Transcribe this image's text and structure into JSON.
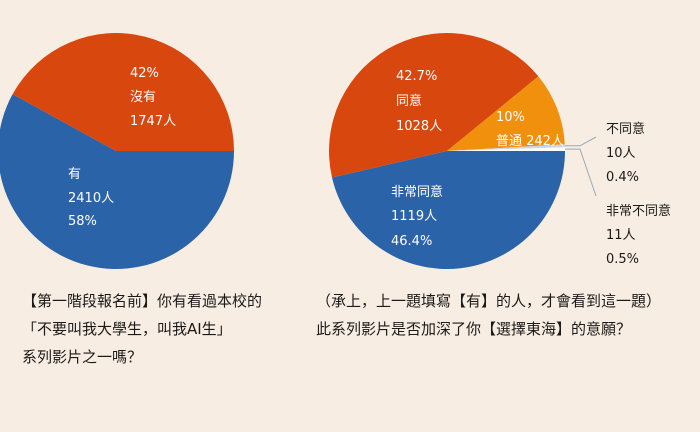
{
  "chart_data": [
    {
      "type": "pie",
      "slices": [
        {
          "label": "有",
          "count": "2410人",
          "percent": "58%",
          "value": 58,
          "color": "#2a63a8"
        },
        {
          "label": "沒有",
          "count": "1747人",
          "percent": "42%",
          "value": 42,
          "color": "#d8470e"
        }
      ],
      "question_lines": [
        "【第一階段報名前】你有看過本校的",
        "「不要叫我大學生，叫我AI生」",
        "系列影片之一嗎？"
      ]
    },
    {
      "type": "pie",
      "slices": [
        {
          "label": "非常同意",
          "count": "1119人",
          "percent": "46.4%",
          "value": 46.4,
          "color": "#2a63a8"
        },
        {
          "label": "同意",
          "count": "1028人",
          "percent": "42.7%",
          "value": 42.7,
          "color": "#d8470e"
        },
        {
          "label": "普通",
          "count": "242人",
          "percent": "10%",
          "value": 10,
          "color": "#f0900c"
        },
        {
          "label": "不同意",
          "count": "10人",
          "percent": "0.4%",
          "value": 0.4,
          "color": "#c8d8ea"
        },
        {
          "label": "非常不同意",
          "count": "11人",
          "percent": "0.5%",
          "value": 0.5,
          "color": "#ffffff"
        }
      ],
      "question_lines": [
        "（承上，上一題填寫【有】的人，才會看到這一題）",
        "此系列影片是否加深了你【選擇東海】的意願？"
      ]
    }
  ],
  "colors": {
    "background": "#f8ede2",
    "blue": "#2a63a8",
    "red": "#d8470e",
    "orange": "#f0900c",
    "white_text": "#ffffff",
    "dark_text": "#1a1a1a",
    "leader": "#9aa8b8"
  }
}
